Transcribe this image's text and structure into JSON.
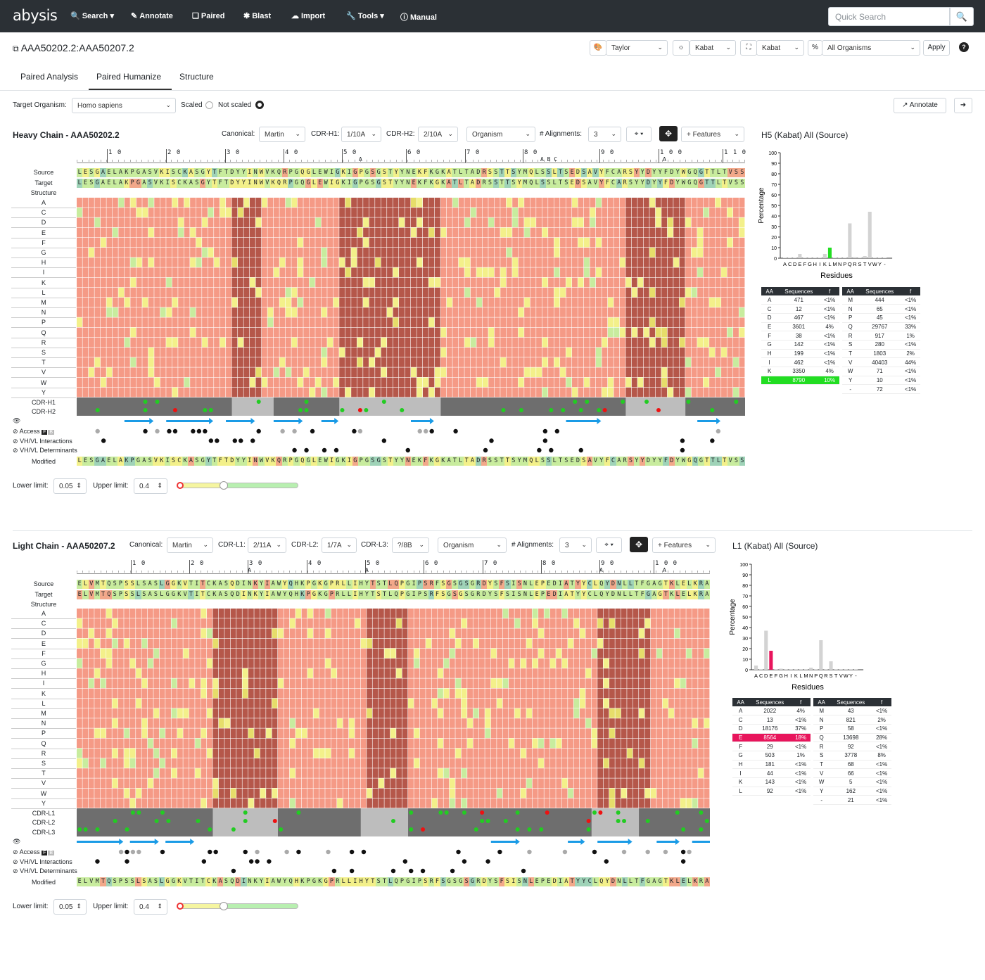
{
  "nav": {
    "logo": "abysis",
    "items": [
      {
        "icon": "search-icon",
        "label": "Search ▾"
      },
      {
        "icon": "pencil-icon",
        "label": "Annotate"
      },
      {
        "icon": "copy-icon",
        "label": "Paired"
      },
      {
        "icon": "bomb-icon",
        "label": "Blast"
      },
      {
        "icon": "cloud-upload-icon",
        "label": "Import"
      },
      {
        "icon": "wrench-icon",
        "label": "Tools ▾"
      },
      {
        "icon": "info-icon",
        "label": "Manual"
      }
    ],
    "search_placeholder": "Quick Search"
  },
  "page": {
    "title": "AAA50202.2:AAA50207.2",
    "color_scheme": "Taylor",
    "scheme1": "Kabat",
    "scheme2": "Kabat",
    "organism_filter": "All Organisms",
    "apply": "Apply",
    "help": "?"
  },
  "tabs": [
    "Paired Analysis",
    "Paired Humanize",
    "Structure"
  ],
  "controls": {
    "target_label": "Target Organism:",
    "target_value": "Homo sapiens",
    "scaled": "Scaled",
    "not_scaled": "Not scaled",
    "annotate": "Annotate"
  },
  "heavy": {
    "title": "Heavy Chain - AAA50202.2",
    "canonical_label": "Canonical:",
    "canonical": "Martin",
    "cdr1_label": "CDR-H1:",
    "cdr1": "1/10A",
    "cdr2_label": "CDR-H2:",
    "cdr2": "2/10A",
    "organism": "Organism",
    "align_label": "# Alignments:",
    "align": "3",
    "features": "+ Features",
    "ruler": [
      [
        "1 0",
        152
      ],
      [
        "2 0",
        236
      ],
      [
        "3 0",
        320
      ],
      [
        "4 0",
        403
      ],
      [
        "5 0",
        486
      ],
      [
        "6 0",
        577
      ],
      [
        "7 0",
        661
      ],
      [
        "8 0",
        743
      ],
      [
        "9 0",
        852
      ],
      [
        "1 0 0",
        936
      ],
      [
        "1 1 0",
        1027
      ]
    ],
    "ruler_sub": [
      [
        "A",
        510
      ],
      [
        "A B C",
        768
      ],
      [
        "A",
        942
      ]
    ],
    "source": "LESGAELAKPGASVKISCKASGYTFTDYYINWVKQRPGQGLEWIGKIGPGSGSTYYNEKFKGKATLTADRSSTTSYMQLSSLTSEDSAVYFCARSYYDYYFDYWGQGTTLTVSS",
    "target": "LESGAELAKPGASVKISCKASGYTFTDYYINWVKQRPGQGLEWIGKIGPGSGSTYYNEKFKGKATLTADRSSTTSYMQLSSLTSEDSAVYFCARSYYDYYFDYWGQGTTLTVSS",
    "modified": "LESGAELAKPGASVKISCKASGYTFTDYYINWVKQRPGQGLEWIGKIGPGSGSTYYNEKFKGKATLTADRSSTTSYMQLSSLTSEDSAVYFCARSYYDYYFDYWGQGTTLTVSS",
    "cdr_labels": [
      "CDR-H1",
      "CDR-H2"
    ],
    "legend": [
      "Access",
      "VH/VL Interactions",
      "VH/VL Determinants"
    ],
    "lower_label": "Lower limit:",
    "lower": "0.05",
    "upper_label": "Upper limit:",
    "upper": "0.4",
    "chart_title": "H5 (Kabat) All (Source)"
  },
  "light": {
    "title": "Light Chain - AAA50207.2",
    "canonical_label": "Canonical:",
    "canonical": "Martin",
    "cdr1_label": "CDR-L1:",
    "cdr1": "2/11A",
    "cdr2_label": "CDR-L2:",
    "cdr2": "1/7A",
    "cdr3_label": "CDR-L3:",
    "cdr3": "?/8B",
    "organism": "Organism",
    "align_label": "# Alignments:",
    "align": "3",
    "features": "+ Features",
    "ruler": [
      [
        "1 0",
        186
      ],
      [
        "2 0",
        269
      ],
      [
        "3 0",
        352
      ],
      [
        "4 0",
        436
      ],
      [
        "5 0",
        519
      ],
      [
        "6 0",
        602
      ],
      [
        "7 0",
        686
      ],
      [
        "8 0",
        769
      ],
      [
        "9 0",
        852
      ],
      [
        "1 0 0",
        929
      ]
    ],
    "ruler_sub": [
      [
        "A",
        352
      ],
      [
        "A",
        519
      ],
      [
        "A",
        852
      ],
      [
        "A",
        942
      ]
    ],
    "source": "ELVMTQSPSSLSASLGGKVTITCKASQDINKYIAWYQHKPGKGPRLLIHYTSTLQPGIPSRFSGSGSGRDYSFSISNLEPEDIATYYCLQYDNLLTFGAGTKLELKRA",
    "target": "ELVMTQSPSSLSASLGGKVTITCKASQDINKYIAWYQHKPGKGPRLLIHYTSTLQPGIPSRFSGSGSGRDYSFSISNLEPEDIATYYCLQYDNLLTFGAGTKLELKRA",
    "modified": "ELVMTQSPSSLSASLGGKVTITCKASQDINKYIAWYQHKPGKGPRLLIHYTSTLQPGIPSRFSGSGSGRDYSFSISNLEPEDIATYYCLQYDNLLTFGAGTKLELKRA",
    "cdr_labels": [
      "CDR-L1",
      "CDR-L2",
      "CDR-L3"
    ],
    "legend": [
      "Access",
      "VH/VL Interactions",
      "VH/VL Determinants"
    ],
    "lower_label": "Lower limit:",
    "lower": "0.05",
    "upper_label": "Upper limit:",
    "upper": "0.4",
    "chart_title": "L1 (Kabat) All (Source)"
  },
  "common": {
    "source_label": "Source",
    "target_label": "Target",
    "structure_label": "Structure",
    "modified_label": "Modified",
    "aa_rows": [
      "A",
      "C",
      "D",
      "E",
      "F",
      "G",
      "H",
      "I",
      "K",
      "L",
      "M",
      "N",
      "P",
      "Q",
      "R",
      "S",
      "T",
      "V",
      "W",
      "Y"
    ]
  },
  "chart_data": [
    {
      "type": "bar",
      "title": "H5 (Kabat) All (Source)",
      "xlabel": "Residues",
      "ylabel": "Percentage",
      "ylim": [
        0,
        100
      ],
      "yticks": [
        0,
        10,
        20,
        30,
        40,
        50,
        60,
        70,
        80,
        90,
        100
      ],
      "categories": [
        "A",
        "C",
        "D",
        "E",
        "F",
        "G",
        "H",
        "I",
        "K",
        "L",
        "M",
        "N",
        "P",
        "Q",
        "R",
        "S",
        "T",
        "V",
        "W",
        "Y",
        "-"
      ],
      "values": [
        0.5,
        0.5,
        0.5,
        4,
        0.5,
        0.5,
        0.5,
        0.5,
        4,
        10,
        0.5,
        0.5,
        0.5,
        33,
        1,
        0.5,
        2,
        44,
        0.5,
        0.5,
        0.5
      ],
      "highlight": "L",
      "highlight_color": "#22dd22"
    },
    {
      "type": "bar",
      "title": "L1 (Kabat) All (Source)",
      "xlabel": "Residues",
      "ylabel": "Percentage",
      "ylim": [
        0,
        100
      ],
      "yticks": [
        0,
        10,
        20,
        30,
        40,
        50,
        60,
        70,
        80,
        90,
        100
      ],
      "categories": [
        "A",
        "C",
        "D",
        "E",
        "F",
        "G",
        "H",
        "I",
        "K",
        "L",
        "M",
        "N",
        "P",
        "Q",
        "R",
        "S",
        "T",
        "V",
        "W",
        "Y",
        "-"
      ],
      "values": [
        4,
        0.5,
        37,
        18,
        0.5,
        1,
        0.5,
        0.5,
        0.5,
        0.5,
        0.5,
        2,
        0.5,
        28,
        0.5,
        8,
        0.5,
        0.5,
        0.5,
        0.5,
        0.5
      ],
      "highlight": "E",
      "highlight_color": "#e8155c"
    }
  ],
  "heavy_table": {
    "headers": [
      "AA",
      "Sequences",
      "f"
    ],
    "left": [
      [
        "A",
        "471",
        "<1%"
      ],
      [
        "C",
        "12",
        "<1%"
      ],
      [
        "D",
        "467",
        "<1%"
      ],
      [
        "E",
        "3601",
        "4%"
      ],
      [
        "F",
        "38",
        "<1%"
      ],
      [
        "G",
        "142",
        "<1%"
      ],
      [
        "H",
        "199",
        "<1%"
      ],
      [
        "I",
        "462",
        "<1%"
      ],
      [
        "K",
        "3350",
        "4%"
      ],
      [
        "L",
        "8790",
        "10%"
      ]
    ],
    "right": [
      [
        "M",
        "444",
        "<1%"
      ],
      [
        "N",
        "65",
        "<1%"
      ],
      [
        "P",
        "45",
        "<1%"
      ],
      [
        "Q",
        "29767",
        "33%"
      ],
      [
        "R",
        "917",
        "1%"
      ],
      [
        "S",
        "280",
        "<1%"
      ],
      [
        "T",
        "1803",
        "2%"
      ],
      [
        "V",
        "40403",
        "44%"
      ],
      [
        "W",
        "71",
        "<1%"
      ],
      [
        "Y",
        "10",
        "<1%"
      ],
      [
        "-",
        "72",
        "<1%"
      ]
    ],
    "hl": "L",
    "hl_color": "#22dd22"
  },
  "light_table": {
    "headers": [
      "AA",
      "Sequences",
      "f"
    ],
    "left": [
      [
        "A",
        "2022",
        "4%"
      ],
      [
        "C",
        "13",
        "<1%"
      ],
      [
        "D",
        "18176",
        "37%"
      ],
      [
        "E",
        "8564",
        "18%"
      ],
      [
        "F",
        "29",
        "<1%"
      ],
      [
        "G",
        "503",
        "1%"
      ],
      [
        "H",
        "181",
        "<1%"
      ],
      [
        "I",
        "44",
        "<1%"
      ],
      [
        "K",
        "143",
        "<1%"
      ],
      [
        "L",
        "92",
        "<1%"
      ]
    ],
    "right": [
      [
        "M",
        "43",
        "<1%"
      ],
      [
        "N",
        "821",
        "2%"
      ],
      [
        "P",
        "58",
        "<1%"
      ],
      [
        "Q",
        "13698",
        "28%"
      ],
      [
        "R",
        "92",
        "<1%"
      ],
      [
        "S",
        "3778",
        "8%"
      ],
      [
        "T",
        "68",
        "<1%"
      ],
      [
        "V",
        "66",
        "<1%"
      ],
      [
        "W",
        "5",
        "<1%"
      ],
      [
        "Y",
        "162",
        "<1%"
      ],
      [
        "-",
        "21",
        "<1%"
      ]
    ],
    "hl": "E",
    "hl_color": "#e8155c"
  }
}
